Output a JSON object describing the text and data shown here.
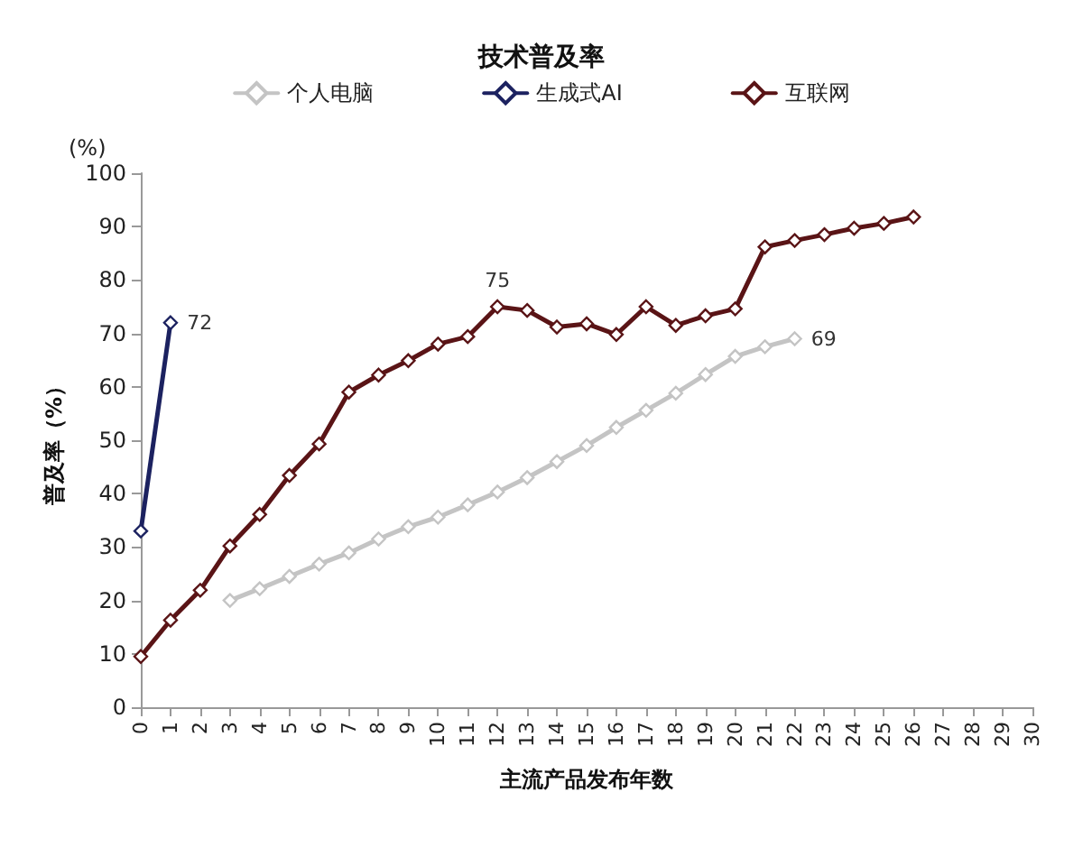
{
  "chart_data": {
    "type": "line",
    "title": "技术普及率",
    "xlabel": "主流产品发布年数",
    "ylabel": "普及率（%）",
    "annotations": [
      "(%)"
    ],
    "categories": [
      "0",
      "1",
      "2",
      "3",
      "4",
      "5",
      "6",
      "7",
      "8",
      "9",
      "10",
      "11",
      "12",
      "13",
      "14",
      "15",
      "16",
      "17",
      "18",
      "19",
      "20",
      "21",
      "22",
      "23",
      "24",
      "25",
      "26",
      "27",
      "28",
      "29",
      "30"
    ],
    "ylim": [
      0,
      100
    ],
    "yticks": [
      0,
      10,
      20,
      30,
      40,
      50,
      60,
      70,
      80,
      90,
      100
    ],
    "grid": false,
    "legend": "top",
    "marker": "diamond",
    "line_style": "solid",
    "series": [
      {
        "name": "个人电脑",
        "color": "#c4c4c4",
        "values": [
          null,
          null,
          null,
          20,
          22.2,
          24.5,
          26.8,
          28.9,
          31.5,
          33.8,
          35.6,
          37.9,
          40.3,
          43,
          46,
          49,
          52.4,
          55.6,
          58.8,
          62.3,
          65.7,
          67.5,
          69,
          null,
          null,
          null,
          null,
          null,
          null,
          null,
          null
        ],
        "value_labels": [
          null,
          null,
          null,
          null,
          null,
          null,
          null,
          null,
          null,
          null,
          null,
          null,
          null,
          null,
          null,
          null,
          null,
          null,
          null,
          null,
          null,
          null,
          "69",
          null,
          null,
          null,
          null,
          null,
          null,
          null,
          null
        ]
      },
      {
        "name": "生成式AI",
        "color": "#1c2260",
        "values": [
          33,
          72,
          null,
          null,
          null,
          null,
          null,
          null,
          null,
          null,
          null,
          null,
          null,
          null,
          null,
          null,
          null,
          null,
          null,
          null,
          null,
          null,
          null,
          null,
          null,
          null,
          null,
          null,
          null,
          null,
          null
        ],
        "value_labels": [
          null,
          "72",
          null,
          null,
          null,
          null,
          null,
          null,
          null,
          null,
          null,
          null,
          null,
          null,
          null,
          null,
          null,
          null,
          null,
          null,
          null,
          null,
          null,
          null,
          null,
          null,
          null,
          null,
          null,
          null,
          null
        ]
      },
      {
        "name": "互联网",
        "color": "#5a1416",
        "values": [
          9.5,
          16.3,
          21.9,
          30.2,
          36.1,
          43.4,
          49.3,
          59,
          62.2,
          64.9,
          68,
          69.4,
          75,
          74.3,
          71.2,
          71.8,
          69.8,
          75,
          71.5,
          73.3,
          74.6,
          86.2,
          87.4,
          88.5,
          89.7,
          90.6,
          91.8,
          null,
          null,
          null,
          null
        ],
        "value_labels": [
          null,
          null,
          null,
          null,
          null,
          null,
          null,
          null,
          null,
          null,
          null,
          null,
          "75",
          null,
          null,
          null,
          null,
          null,
          null,
          null,
          null,
          null,
          null,
          null,
          null,
          null,
          null,
          null,
          null,
          null,
          null
        ]
      }
    ]
  }
}
